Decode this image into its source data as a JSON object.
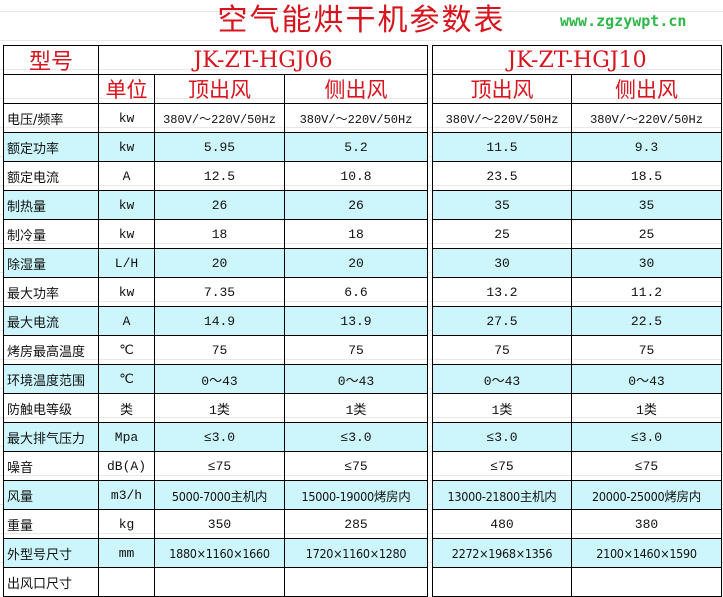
{
  "title": "空气能烘干机参数表",
  "header": {
    "model_label": "型号",
    "unit_label": "单位",
    "models": [
      {
        "name": "JK-ZT-HGJ06",
        "variants": [
          "顶出风",
          "侧出风"
        ]
      },
      {
        "name": "JK-ZT-HGJ10",
        "variants": [
          "顶出风",
          "侧出风"
        ]
      }
    ]
  },
  "rows": [
    {
      "label": "电压/频率",
      "unit": "kw",
      "values": [
        "380V/～220V/50Hz",
        "380V/～220V/50Hz",
        "380V/～220V/50Hz",
        "380V/～220V/50Hz"
      ]
    },
    {
      "label": "额定功率",
      "unit": "kw",
      "values": [
        "5.95",
        "5.2",
        "11.5",
        "9.3"
      ]
    },
    {
      "label": "额定电流",
      "unit": "A",
      "values": [
        "12.5",
        "10.8",
        "23.5",
        "18.5"
      ]
    },
    {
      "label": "制热量",
      "unit": "kw",
      "values": [
        "26",
        "26",
        "35",
        "35"
      ]
    },
    {
      "label": "制冷量",
      "unit": "kw",
      "values": [
        "18",
        "18",
        "25",
        "25"
      ]
    },
    {
      "label": "除湿量",
      "unit": "L/H",
      "values": [
        "20",
        "20",
        "30",
        "30"
      ]
    },
    {
      "label": "最大功率",
      "unit": "kw",
      "values": [
        "7.35",
        "6.6",
        "13.2",
        "11.2"
      ]
    },
    {
      "label": "最大电流",
      "unit": "A",
      "values": [
        "14.9",
        "13.9",
        "27.5",
        "22.5"
      ]
    },
    {
      "label": "烤房最高温度",
      "unit": "℃",
      "values": [
        "75",
        "75",
        "75",
        "75"
      ]
    },
    {
      "label": "环境温度范围",
      "unit": "℃",
      "values": [
        "0～43",
        "0～43",
        "0～43",
        "0～43"
      ]
    },
    {
      "label": "防触电等级",
      "unit": "类",
      "values": [
        "1类",
        "1类",
        "1类",
        "1类"
      ]
    },
    {
      "label": "最大排气压力",
      "unit": "Mpa",
      "values": [
        "≤3.0",
        "≤3.0",
        "≤3.0",
        "≤3.0"
      ]
    },
    {
      "label": "噪音",
      "unit": "dB(A)",
      "values": [
        "≤75",
        "≤75",
        "≤75",
        "≤75"
      ]
    },
    {
      "label": "风量",
      "unit": "m3/h",
      "values": [
        "5000-7000主机内",
        "15000-19000烤房内",
        "13000-21800主机内",
        "20000-25000烤房内"
      ]
    },
    {
      "label": "重量",
      "unit": "kg",
      "values": [
        "350",
        "285",
        "480",
        "380"
      ]
    },
    {
      "label": "外型号尺寸",
      "unit": "mm",
      "values": [
        "1880×1160×1660",
        "1720×1160×1280",
        "2272×1968×1356",
        "2100×1460×1590"
      ]
    },
    {
      "label": "出风口尺寸",
      "unit": "",
      "values": [
        "",
        "",
        "",
        ""
      ]
    }
  ],
  "watermark": "www.zgzywpt.cn",
  "colors": {
    "title": "#d8141e",
    "alt_row": "#ccf6fb",
    "watermark": "#2fb84a"
  }
}
